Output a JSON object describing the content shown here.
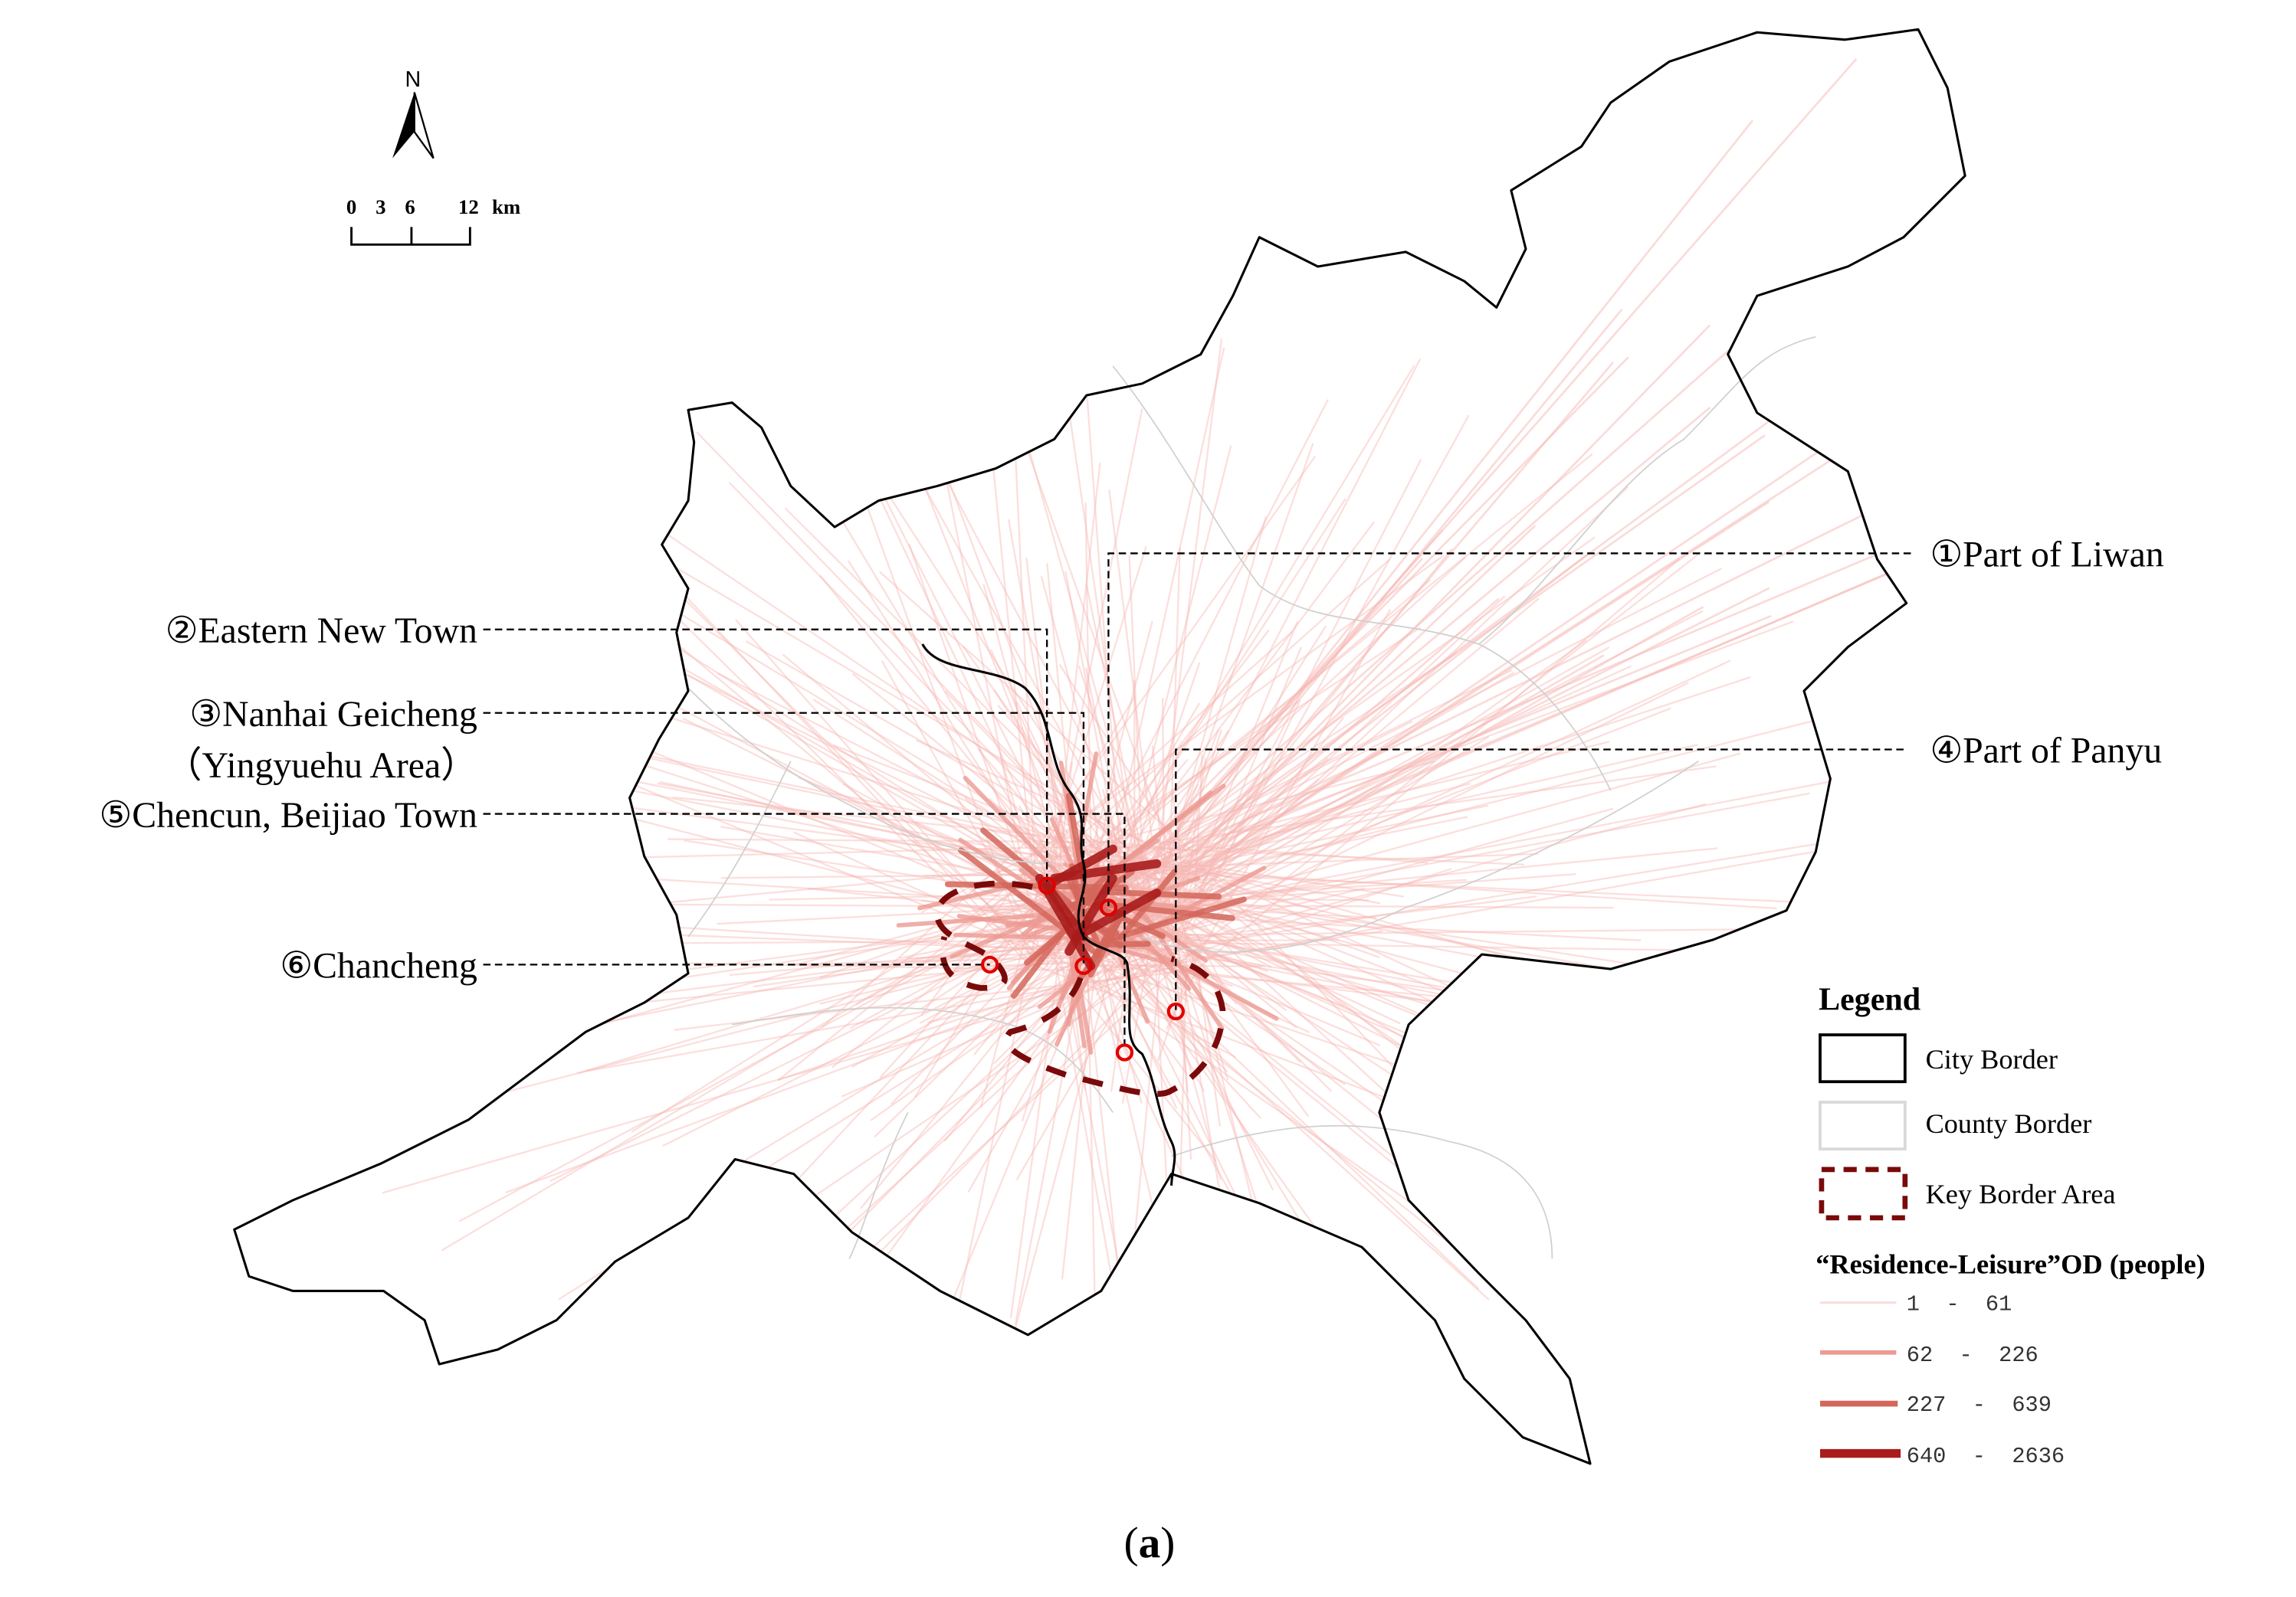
{
  "north_arrow": {
    "label": "N"
  },
  "scale_bar": {
    "ticks": [
      "0",
      "3",
      "6",
      "12"
    ],
    "unit": "km"
  },
  "callouts": [
    {
      "number": "①",
      "name": "Part of Liwan"
    },
    {
      "number": "②",
      "name": "Eastern New Town"
    },
    {
      "number": "③",
      "name": "Nanhai Geicheng",
      "subtitle": "（Yingyuehu Area）"
    },
    {
      "number": "④",
      "name": "Part of Panyu"
    },
    {
      "number": "⑤",
      "name": "Chencun, Beijiao Town"
    },
    {
      "number": "⑥",
      "name": "Chancheng"
    }
  ],
  "legend": {
    "title": "Legend",
    "items": [
      {
        "label": "City Border",
        "color": "#000000"
      },
      {
        "label": "County Border",
        "color": "#d9d9d9"
      },
      {
        "label": "Key Border Area",
        "color": "#7a0a0a"
      }
    ],
    "od_title": "“Residence-Leisure”OD (people)",
    "od_classes": [
      {
        "label": "1  -  61",
        "color": "#f9dcdc"
      },
      {
        "label": "62  -  226",
        "color": "#ec9a92"
      },
      {
        "label": "227  -  639",
        "color": "#d4665a"
      },
      {
        "label": "640  -  2636",
        "color": "#a91c1c"
      }
    ]
  },
  "caption": {
    "open": "(",
    "letter": "a",
    "close": ")"
  }
}
